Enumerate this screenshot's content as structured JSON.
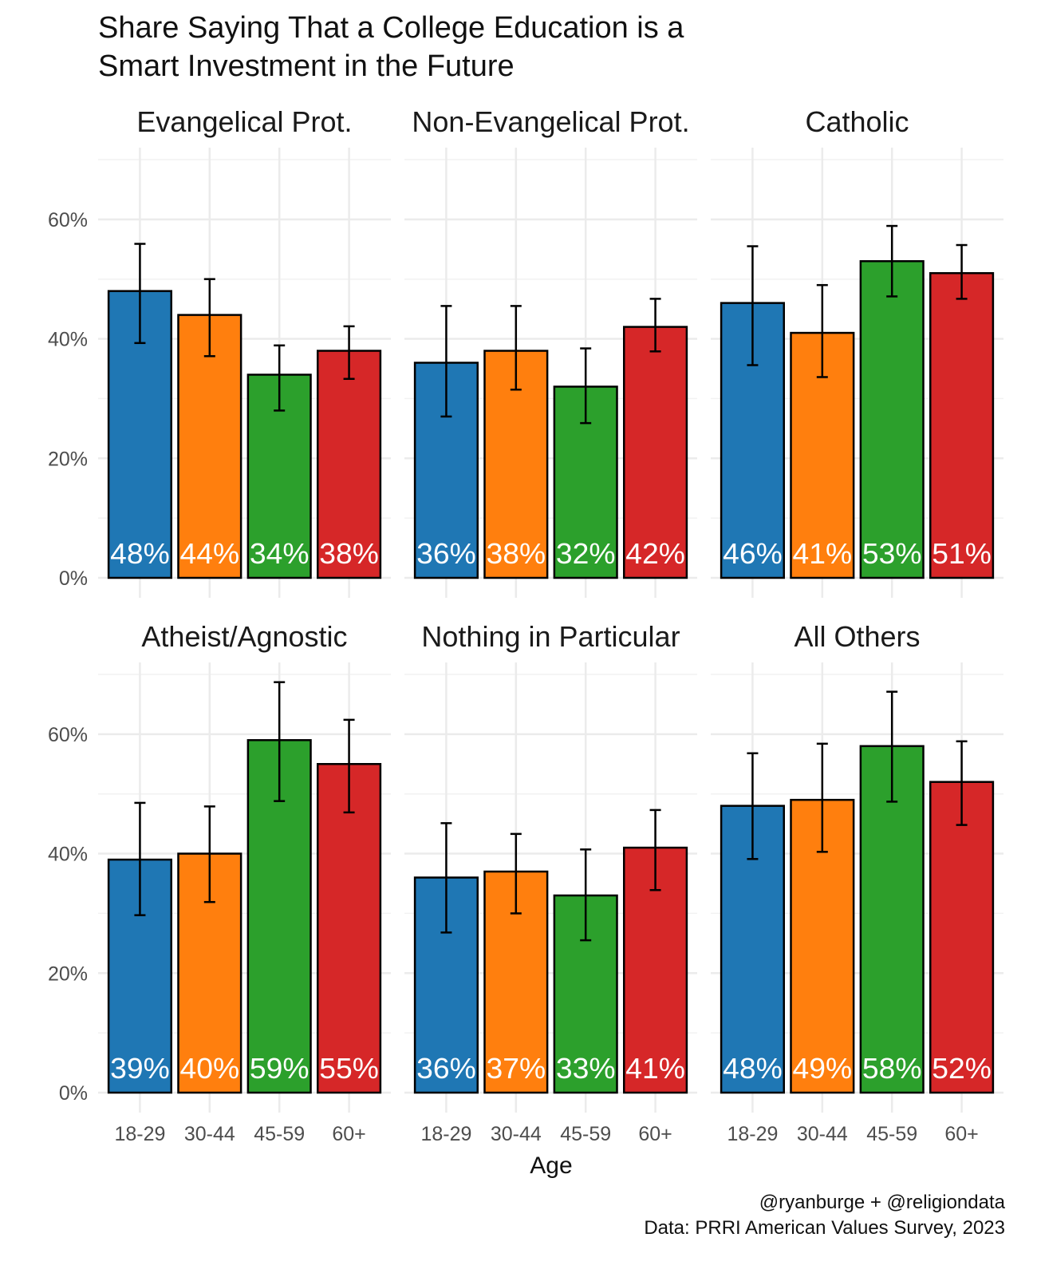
{
  "chart_data": {
    "type": "bar",
    "title": "Share Saying That a College Education is a Smart Investment in the Future",
    "title_lines": [
      "Share Saying That a College Education is a",
      "Smart Investment in the Future"
    ],
    "xlabel": "Age",
    "ylabel": "",
    "ylim": [
      0,
      72
    ],
    "yticks": [
      0,
      20,
      40,
      60
    ],
    "ytick_labels": [
      "0%",
      "20%",
      "40%",
      "60%"
    ],
    "grid": true,
    "categories": [
      "18-29",
      "30-44",
      "45-59",
      "60+"
    ],
    "colors": [
      "#1F77B4",
      "#FF7F0E",
      "#2CA02C",
      "#D62728"
    ],
    "caption_lines": [
      "@ryanburge + @religiondata",
      "Data: PRRI American Values Survey, 2023"
    ],
    "panels": [
      {
        "name": "Evangelical Prot.",
        "values": [
          48,
          44,
          34,
          38
        ],
        "labels": [
          "48%",
          "44%",
          "34%",
          "38%"
        ],
        "ci_low": [
          39.3,
          37.1,
          28.0,
          33.3
        ],
        "ci_high": [
          55.9,
          50.0,
          38.9,
          42.1
        ]
      },
      {
        "name": "Non-Evangelical Prot.",
        "values": [
          36,
          38,
          32,
          42
        ],
        "labels": [
          "36%",
          "38%",
          "32%",
          "42%"
        ],
        "ci_low": [
          27.0,
          31.5,
          25.9,
          37.9
        ],
        "ci_high": [
          45.5,
          45.5,
          38.4,
          46.7
        ]
      },
      {
        "name": "Catholic",
        "values": [
          46,
          41,
          53,
          51
        ],
        "labels": [
          "46%",
          "41%",
          "53%",
          "51%"
        ],
        "ci_low": [
          35.6,
          33.6,
          47.1,
          46.7
        ],
        "ci_high": [
          55.5,
          49.0,
          58.9,
          55.7
        ]
      },
      {
        "name": "Atheist/Agnostic",
        "values": [
          39,
          40,
          59,
          55
        ],
        "labels": [
          "39%",
          "40%",
          "59%",
          "55%"
        ],
        "ci_low": [
          29.7,
          31.9,
          48.8,
          46.9
        ],
        "ci_high": [
          48.5,
          47.9,
          68.7,
          62.4
        ]
      },
      {
        "name": "Nothing in Particular",
        "values": [
          36,
          37,
          33,
          41
        ],
        "labels": [
          "36%",
          "37%",
          "33%",
          "41%"
        ],
        "ci_low": [
          26.8,
          30.0,
          25.5,
          33.9
        ],
        "ci_high": [
          45.1,
          43.3,
          40.7,
          47.3
        ]
      },
      {
        "name": "All Others",
        "values": [
          48,
          49,
          58,
          52
        ],
        "labels": [
          "48%",
          "49%",
          "58%",
          "52%"
        ],
        "ci_low": [
          39.1,
          40.3,
          48.7,
          44.8
        ],
        "ci_high": [
          56.8,
          58.4,
          67.1,
          58.8
        ]
      }
    ]
  }
}
